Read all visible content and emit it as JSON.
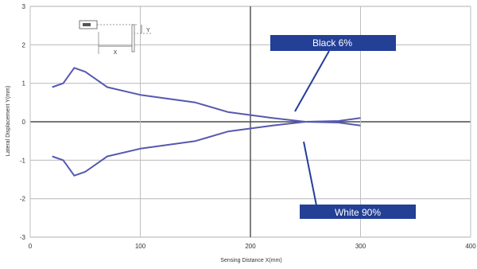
{
  "chart_data": {
    "type": "line",
    "xlabel": "Sensing Distance X(mm)",
    "ylabel": "Lateral Displacement Y(mm)",
    "xlim": [
      0,
      400
    ],
    "ylim": [
      -3,
      3
    ],
    "x_ticks": [
      "0",
      "100",
      "200",
      "300",
      "400"
    ],
    "y_ticks": [
      "3",
      "2",
      "1",
      "0",
      "-1",
      "-2",
      "-3"
    ],
    "grid": true,
    "series": [
      {
        "name": "Black 6%",
        "points": [
          [
            20,
            0.9
          ],
          [
            30,
            1.0
          ],
          [
            40,
            1.4
          ],
          [
            50,
            1.3
          ],
          [
            60,
            1.1
          ],
          [
            70,
            0.9
          ],
          [
            100,
            0.7
          ],
          [
            150,
            0.5
          ],
          [
            180,
            0.25
          ],
          [
            220,
            0.1
          ],
          [
            250,
            0.0
          ],
          [
            280,
            -0.02
          ],
          [
            300,
            -0.1
          ]
        ]
      },
      {
        "name": "White 90%",
        "points": [
          [
            20,
            -0.9
          ],
          [
            30,
            -1.0
          ],
          [
            40,
            -1.4
          ],
          [
            50,
            -1.3
          ],
          [
            60,
            -1.1
          ],
          [
            70,
            -0.9
          ],
          [
            100,
            -0.7
          ],
          [
            150,
            -0.5
          ],
          [
            180,
            -0.25
          ],
          [
            220,
            -0.1
          ],
          [
            250,
            0.0
          ],
          [
            280,
            0.02
          ],
          [
            300,
            0.1
          ]
        ]
      }
    ],
    "annotations": {
      "black_label": "Black 6%",
      "white_label": "White 90%",
      "inset_x": "X",
      "inset_y": "Y"
    },
    "colors": {
      "series_line": "#5559b0",
      "callout_fill": "#233f96",
      "callout_leader": "#233f96",
      "grid": "#bfbfbf",
      "grid_major": "#4a4a4a"
    }
  }
}
